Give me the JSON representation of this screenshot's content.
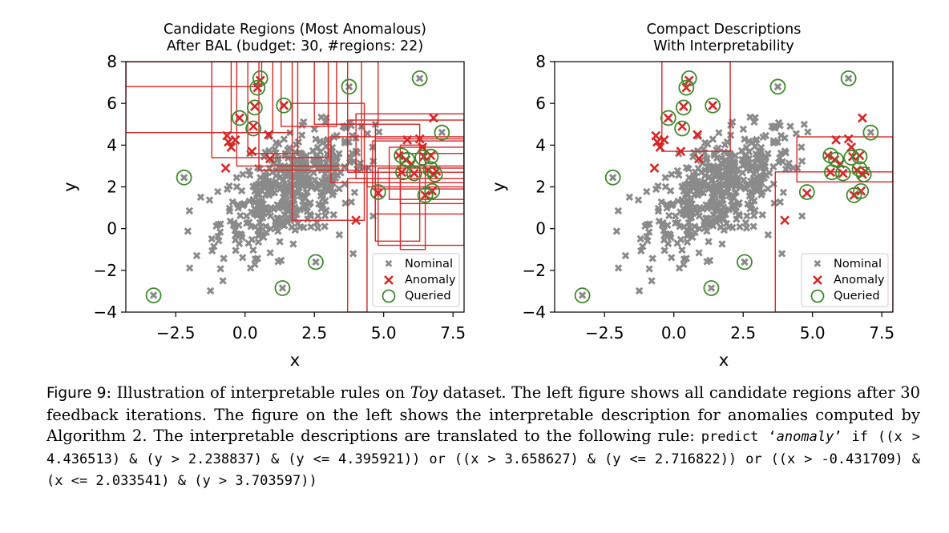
{
  "charts": [
    {
      "type": "scatter",
      "title_line1": "Candidate Regions (Most Anomalous)",
      "title_line2": "After BAL (budget: 30, #regions: 22)",
      "xlabel": "x",
      "ylabel": "y",
      "xlim": [
        -4.3,
        7.9
      ],
      "ylim": [
        -4,
        8
      ],
      "xticks": [
        "−2.5",
        "0.0",
        "2.5",
        "5.0",
        "7.5"
      ],
      "xtick_values": [
        -2.5,
        0.0,
        2.5,
        5.0,
        7.5
      ],
      "yticks": [
        "−4",
        "−2",
        "0",
        "2",
        "4",
        "6",
        "8"
      ],
      "ytick_values": [
        -4,
        -2,
        0,
        2,
        4,
        6,
        8
      ],
      "legend_position": "lower-right",
      "legend": [
        "Nominal",
        "Anomaly",
        "Queried"
      ],
      "regions": [
        [
          -4.3,
          1.7,
          4.6,
          8.0
        ],
        [
          -4.3,
          0.6,
          6.8,
          8.0
        ],
        [
          -1.2,
          3.0,
          3.4,
          8.0
        ],
        [
          -0.3,
          3.7,
          3.0,
          8.0
        ],
        [
          0.5,
          4.2,
          2.8,
          8.0
        ],
        [
          -0.5,
          1.0,
          4.6,
          8.0
        ],
        [
          1.3,
          3.3,
          4.9,
          8.0
        ],
        [
          2.5,
          4.8,
          5.0,
          8.0
        ],
        [
          0.1,
          1.9,
          3.6,
          8.0
        ],
        [
          1.7,
          4.3,
          0.4,
          6.0
        ],
        [
          4.0,
          7.9,
          2.4,
          5.5
        ],
        [
          3.7,
          7.9,
          2.7,
          5.2
        ],
        [
          3.1,
          7.9,
          2.2,
          4.4
        ],
        [
          4.6,
          7.9,
          1.9,
          4.2
        ],
        [
          5.2,
          7.9,
          1.4,
          3.9
        ],
        [
          5.6,
          7.9,
          1.2,
          3.6
        ],
        [
          4.4,
          7.9,
          2.0,
          3.0
        ],
        [
          4.7,
          6.3,
          -0.6,
          5.0
        ],
        [
          5.6,
          6.5,
          -1.0,
          4.0
        ],
        [
          3.7,
          4.4,
          -4.0,
          2.4
        ],
        [
          4.8,
          7.9,
          -0.8,
          2.9
        ],
        [
          4.7,
          7.9,
          0.7,
          4.3
        ]
      ]
    },
    {
      "type": "scatter",
      "title_line1": "Compact Descriptions",
      "title_line2": "With Interpretability",
      "xlabel": "x",
      "ylabel": "y",
      "xlim": [
        -4.3,
        7.9
      ],
      "ylim": [
        -4,
        8
      ],
      "xticks": [
        "−2.5",
        "0.0",
        "2.5",
        "5.0",
        "7.5"
      ],
      "xtick_values": [
        -2.5,
        0.0,
        2.5,
        5.0,
        7.5
      ],
      "yticks": [
        "−4",
        "−2",
        "0",
        "2",
        "4",
        "6",
        "8"
      ],
      "ytick_values": [
        -4,
        -2,
        0,
        2,
        4,
        6,
        8
      ],
      "legend_position": "lower-right",
      "legend": [
        "Nominal",
        "Anomaly",
        "Queried"
      ],
      "regions": [
        [
          4.436513,
          7.9,
          2.238837,
          4.395921
        ],
        [
          3.658627,
          7.9,
          -4.0,
          2.716822
        ],
        [
          -0.431709,
          2.033541,
          3.703597,
          8.0
        ]
      ]
    }
  ],
  "shared_points": {
    "anomalies": [
      [
        -0.65,
        4.45
      ],
      [
        -0.6,
        4.15
      ],
      [
        -0.5,
        3.9
      ],
      [
        -0.35,
        4.25
      ],
      [
        -0.7,
        2.9
      ],
      [
        -0.2,
        5.3
      ],
      [
        0.3,
        4.9
      ],
      [
        0.35,
        5.85
      ],
      [
        0.45,
        6.75
      ],
      [
        0.55,
        7.1
      ],
      [
        0.25,
        3.7
      ],
      [
        0.85,
        4.5
      ],
      [
        0.9,
        3.35
      ],
      [
        1.4,
        5.9
      ],
      [
        4.0,
        0.4
      ],
      [
        5.55,
        3.5
      ],
      [
        5.65,
        2.7
      ],
      [
        5.8,
        3.3
      ],
      [
        5.85,
        4.25
      ],
      [
        6.0,
        3.1
      ],
      [
        6.3,
        4.3
      ],
      [
        6.4,
        3.9
      ],
      [
        6.1,
        2.65
      ],
      [
        6.45,
        3.45
      ],
      [
        6.7,
        3.5
      ],
      [
        6.6,
        2.8
      ],
      [
        6.8,
        2.6
      ],
      [
        6.9,
        2.75
      ],
      [
        6.8,
        5.3
      ],
      [
        4.8,
        1.7
      ],
      [
        6.5,
        1.6
      ],
      [
        6.75,
        1.8
      ]
    ],
    "queried": [
      [
        -3.3,
        -3.2
      ],
      [
        -2.2,
        2.45
      ],
      [
        0.45,
        6.75
      ],
      [
        0.55,
        7.2
      ],
      [
        0.35,
        5.8
      ],
      [
        -0.2,
        5.3
      ],
      [
        0.3,
        4.8
      ],
      [
        1.4,
        5.9
      ],
      [
        1.35,
        -2.85
      ],
      [
        2.55,
        -1.6
      ],
      [
        3.75,
        6.8
      ],
      [
        6.3,
        7.2
      ],
      [
        7.1,
        4.6
      ],
      [
        5.65,
        3.5
      ],
      [
        5.7,
        2.7
      ],
      [
        5.85,
        3.3
      ],
      [
        6.1,
        2.65
      ],
      [
        6.4,
        3.4
      ],
      [
        6.7,
        3.45
      ],
      [
        6.7,
        2.85
      ],
      [
        6.85,
        2.6
      ],
      [
        4.8,
        1.75
      ],
      [
        6.5,
        1.6
      ],
      [
        6.75,
        1.8
      ]
    ]
  },
  "caption": {
    "label": "Figure 9",
    "text1": ":  Illustration of interpretable rules on ",
    "dataset_name": "Toy",
    "text2": " dataset.  The left figure shows all candidate regions after 30 feedback iterations. The figure on the left shows the interpretable description for anomalies computed by Algorithm 2. The interpretable descriptions are translated to the following rule:    ",
    "rule_prefix": "predict ‘",
    "rule_word": "anomaly",
    "rule_suffix": "’ if ((x > 4.436513) & (y > 2.238837) & (y <= 4.395921)) or ((x > 3.658627) & (y <= 2.716822)) or ((x > -0.431709) & (x <= 2.033541) & (y > 3.703597))"
  }
}
